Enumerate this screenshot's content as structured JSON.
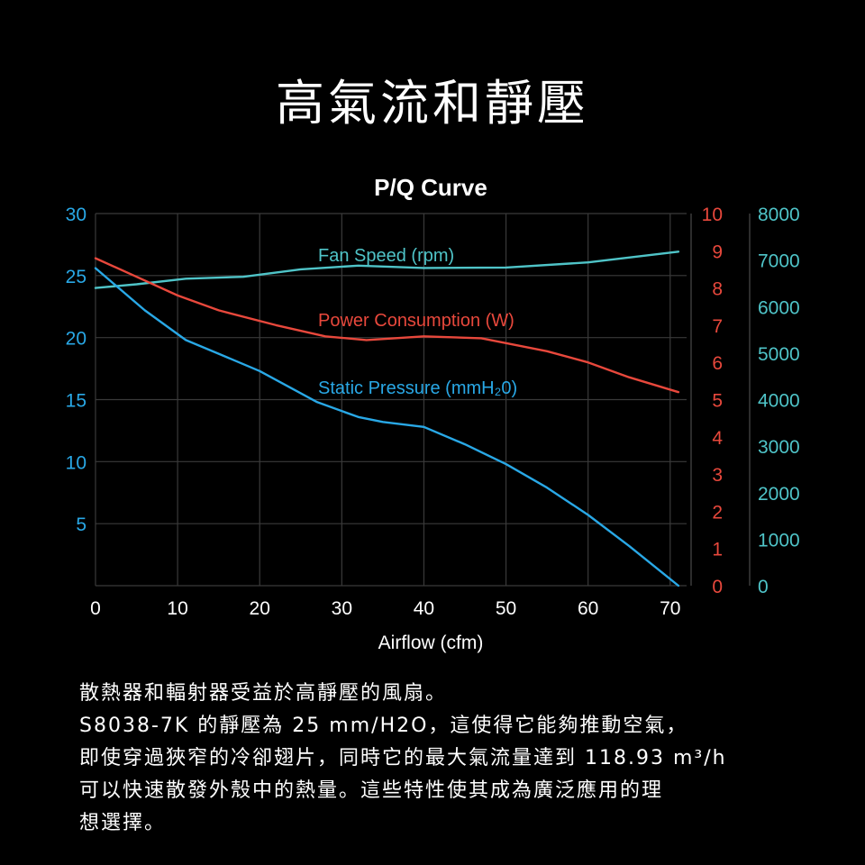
{
  "heading": "高氣流和靜壓",
  "description": [
    "散熱器和輻射器受益於高靜壓的風扇。",
    "S8038-7K 的靜壓為 25 mm/H2O，這使得它能夠推動空氣，",
    "即使穿過狹窄的冷卻翅片，同時它的最大氣流量達到 118.93 m³/h",
    "可以快速散發外殼中的熱量。這些特性使其成為廣泛應用的理",
    "想選擇。"
  ],
  "colors": {
    "background": "#000000",
    "grid": "#3a3a3a",
    "static_pressure": "#29a8e6",
    "power": "#e8483c",
    "fan_speed": "#4fc4c8",
    "text": "#ffffff"
  },
  "chart_data": {
    "type": "line",
    "title": "P/Q Curve",
    "xlabel": "Airflow (cfm)",
    "xlim": [
      0,
      72
    ],
    "x_ticks": [
      0,
      10,
      20,
      30,
      40,
      50,
      60,
      70
    ],
    "axes": {
      "pressure": {
        "ylim": [
          0,
          30
        ],
        "ticks": [
          5,
          10,
          15,
          20,
          25,
          30
        ],
        "color": "#29a8e6",
        "position": "left"
      },
      "power": {
        "ylim": [
          0,
          10
        ],
        "ticks": [
          0,
          1,
          2,
          3,
          4,
          5,
          6,
          7,
          8,
          9,
          10
        ],
        "color": "#e8483c",
        "position": "right"
      },
      "speed": {
        "ylim": [
          0,
          8000
        ],
        "ticks": [
          0,
          1000,
          2000,
          3000,
          4000,
          5000,
          6000,
          7000,
          8000
        ],
        "color": "#4fc4c8",
        "position": "far-right"
      }
    },
    "grid": true,
    "series": [
      {
        "name": "Fan Speed (rpm)",
        "axis": "speed",
        "color": "#4fc4c8",
        "x": [
          0,
          5,
          11,
          18,
          25,
          32,
          40,
          50,
          60,
          71
        ],
        "y": [
          6400,
          6480,
          6600,
          6640,
          6800,
          6880,
          6830,
          6840,
          6950,
          7180
        ]
      },
      {
        "name": "Power Consumption (W)",
        "axis": "power",
        "color": "#e8483c",
        "x": [
          0,
          5,
          10,
          15,
          22,
          28,
          33,
          40,
          47,
          55,
          60,
          65,
          71
        ],
        "y": [
          8.8,
          8.3,
          7.8,
          7.4,
          7.0,
          6.7,
          6.6,
          6.7,
          6.65,
          6.3,
          6.0,
          5.6,
          5.2
        ]
      },
      {
        "name": "Static Pressure (mmH20)",
        "axis": "pressure",
        "color": "#29a8e6",
        "x": [
          0,
          6,
          11,
          15,
          20,
          27,
          32,
          35,
          40,
          45,
          50,
          55,
          60,
          65,
          71
        ],
        "y": [
          25.6,
          22.2,
          19.8,
          18.7,
          17.3,
          14.8,
          13.6,
          13.2,
          12.8,
          11.4,
          9.8,
          7.9,
          5.7,
          3.2,
          0
        ]
      }
    ],
    "annotations": [
      {
        "text": "Fan Speed (rpm)",
        "series": "Fan Speed (rpm)"
      },
      {
        "text": "Power Consumption (W)",
        "series": "Power Consumption (W)"
      },
      {
        "text": "Static Pressure (mmH₂0)",
        "series": "Static Pressure (mmH20)"
      }
    ]
  }
}
